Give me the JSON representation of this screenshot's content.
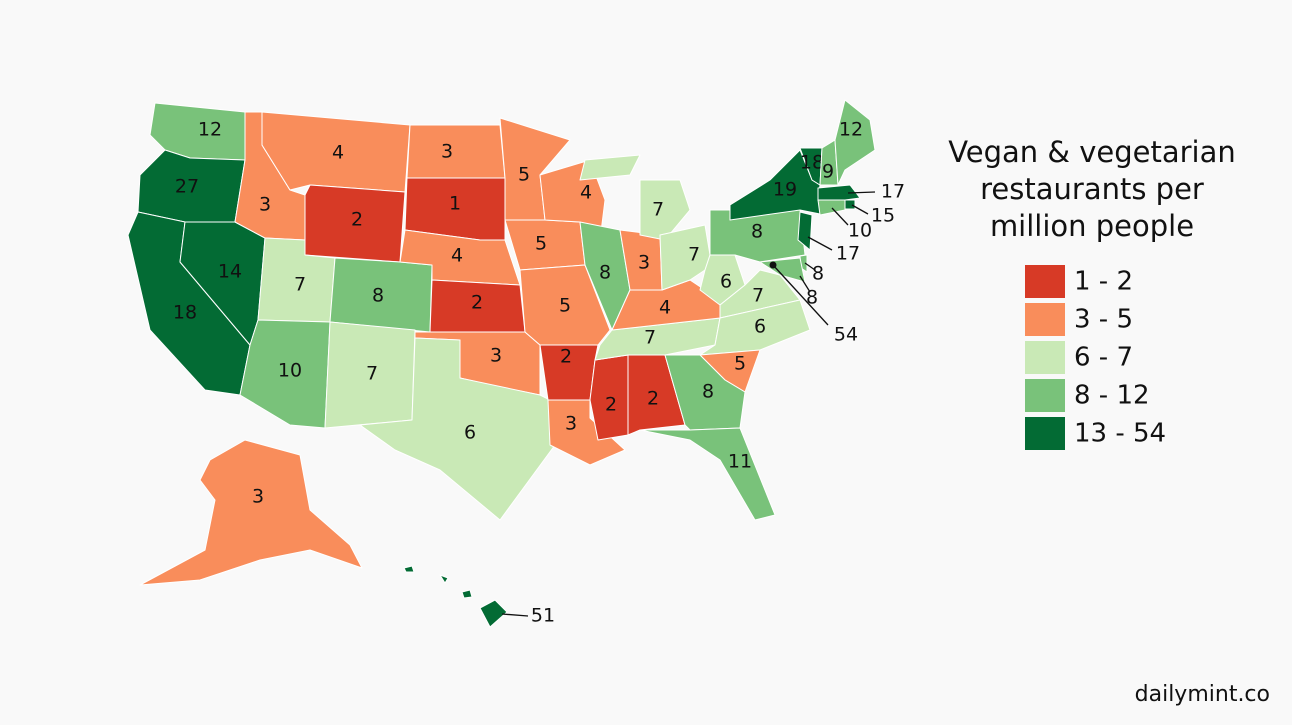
{
  "map": {
    "title": "Vegan & vegetarian restaurants per million people",
    "legend": [
      {
        "label": "1 - 2",
        "color": "#d73a26"
      },
      {
        "label": "3 - 5",
        "color": "#f98d5b"
      },
      {
        "label": "6 - 7",
        "color": "#c9e9b6"
      },
      {
        "label": "8 - 12",
        "color": "#79c27a"
      },
      {
        "label": "13 - 54",
        "color": "#036b34"
      }
    ],
    "regions": [
      {
        "value": 12
      },
      {
        "value": 27
      },
      {
        "value": 18
      },
      {
        "value": 14
      },
      {
        "value": 3
      },
      {
        "value": 4
      },
      {
        "value": 2
      },
      {
        "value": 7
      },
      {
        "value": 8
      },
      {
        "value": 10
      },
      {
        "value": 7
      },
      {
        "value": 3
      },
      {
        "value": 1
      },
      {
        "value": 4
      },
      {
        "value": 2
      },
      {
        "value": 3
      },
      {
        "value": 6
      },
      {
        "value": 5
      },
      {
        "value": 5
      },
      {
        "value": 5
      },
      {
        "value": 2
      },
      {
        "value": 3
      },
      {
        "value": 4
      },
      {
        "value": 8
      },
      {
        "value": 2
      },
      {
        "value": 2
      },
      {
        "value": 7
      },
      {
        "value": 4
      },
      {
        "value": 3
      },
      {
        "value": 7
      },
      {
        "value": 7
      },
      {
        "value": 6
      },
      {
        "value": 7
      },
      {
        "value": 6
      },
      {
        "value": 5
      },
      {
        "value": 8
      },
      {
        "value": 11
      },
      {
        "value": 8
      },
      {
        "value": 19
      },
      {
        "value": 18
      },
      {
        "value": 9
      },
      {
        "value": 12
      },
      {
        "value": 17
      },
      {
        "value": 15
      },
      {
        "value": 10
      },
      {
        "value": 17
      },
      {
        "value": 8
      },
      {
        "value": 8
      },
      {
        "value": 54
      },
      {
        "value": 3
      },
      {
        "value": 51
      }
    ],
    "source": "dailymint.co"
  }
}
